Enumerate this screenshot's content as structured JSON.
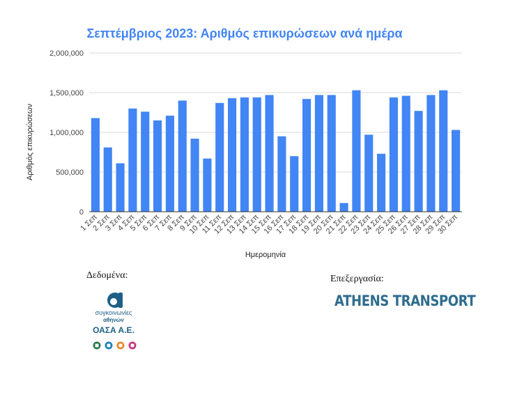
{
  "chart_data": {
    "type": "bar",
    "title": "Σεπτέμβριος 2023: Αριθμός επικυρώσεων ανά ημέρα",
    "xlabel": "Ημερομηνία",
    "ylabel": "Αριθμός επικυρώσεων",
    "ylim": [
      0,
      2000000
    ],
    "yticks": [
      "0",
      "500,000",
      "1,000,000",
      "1,500,000",
      "2,000,000"
    ],
    "ytick_values": [
      0,
      500000,
      1000000,
      1500000,
      2000000
    ],
    "grid": true,
    "bar_color": "#4285f4",
    "categories": [
      "1 Σεπ",
      "2 Σεπ",
      "3 Σεπ",
      "4 Σεπ",
      "5 Σεπ",
      "6 Σεπ",
      "7 Σεπ",
      "8 Σεπ",
      "9 Σεπ",
      "10 Σεπ",
      "11 Σεπ",
      "12 Σεπ",
      "13 Σεπ",
      "14 Σεπ",
      "15 Σεπ",
      "16 Σεπ",
      "17 Σεπ",
      "18 Σεπ",
      "19 Σεπ",
      "20 Σεπ",
      "21 Σεπ",
      "22 Σεπ",
      "23 Σεπ",
      "24 Σεπ",
      "25 Σεπ",
      "26 Σεπ",
      "27 Σεπ",
      "28 Σεπ",
      "29 Σεπ",
      "30 Σεπ"
    ],
    "values": [
      1180000,
      810000,
      610000,
      1300000,
      1260000,
      1150000,
      1210000,
      1400000,
      920000,
      670000,
      1370000,
      1430000,
      1440000,
      1440000,
      1470000,
      950000,
      700000,
      1420000,
      1470000,
      1470000,
      110000,
      1530000,
      970000,
      730000,
      1440000,
      1460000,
      1270000,
      1470000,
      1530000,
      1030000
    ]
  },
  "sources": {
    "data_label": "Δεδομένα:",
    "processing_label": "Επεξεργασία:",
    "oasa_line1": "συγκοινωνίες",
    "oasa_line2": "αθηνών",
    "oasa_name": "ΟΑΣΑ Α.Ε.",
    "athens_transport": "ATHENS TRANSPORT"
  }
}
